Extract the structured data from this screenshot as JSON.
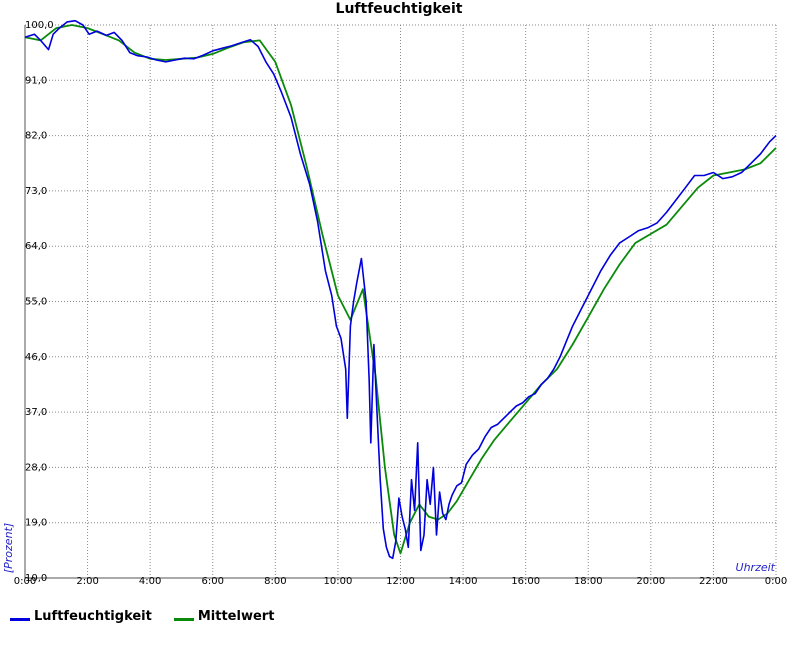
{
  "chart_data": {
    "type": "line",
    "title": "Luftfeuchtigkeit",
    "ylabel": "[Prozent]",
    "xlabel": "Uhrzeit",
    "ylim": [
      10,
      100
    ],
    "xlim": [
      0,
      24
    ],
    "y_ticks": [
      "10,0",
      "19,0",
      "28,0",
      "37,0",
      "46,0",
      "55,0",
      "64,0",
      "73,0",
      "82,0",
      "91,0",
      "100,0"
    ],
    "x_ticks": [
      "0:00",
      "2:00",
      "4:00",
      "6:00",
      "8:00",
      "10:00",
      "12:00",
      "14:00",
      "16:00",
      "18:00",
      "20:00",
      "22:00",
      "0:00"
    ],
    "grid": true,
    "legend_position": "bottom-left",
    "series": [
      {
        "name": "Luftfeuchtigkeit",
        "color": "#0000dd",
        "x": [
          0,
          0.3,
          0.5,
          0.75,
          0.9,
          1.1,
          1.35,
          1.6,
          1.85,
          2.05,
          2.3,
          2.6,
          2.85,
          3.1,
          3.35,
          3.6,
          3.9,
          4.2,
          4.5,
          4.8,
          5.1,
          5.4,
          5.7,
          6.0,
          6.3,
          6.6,
          6.9,
          7.2,
          7.45,
          7.7,
          7.95,
          8.2,
          8.5,
          8.8,
          9.1,
          9.35,
          9.6,
          9.8,
          9.95,
          10.1,
          10.25,
          10.3,
          10.4,
          10.5,
          10.6,
          10.75,
          10.9,
          11.0,
          11.05,
          11.15,
          11.25,
          11.35,
          11.45,
          11.55,
          11.65,
          11.75,
          11.85,
          11.95,
          12.05,
          12.15,
          12.25,
          12.35,
          12.45,
          12.55,
          12.65,
          12.75,
          12.85,
          12.95,
          13.05,
          13.15,
          13.25,
          13.35,
          13.45,
          13.55,
          13.65,
          13.8,
          13.95,
          14.1,
          14.3,
          14.5,
          14.7,
          14.9,
          15.1,
          15.3,
          15.5,
          15.7,
          15.9,
          16.1,
          16.3,
          16.5,
          16.7,
          16.9,
          17.1,
          17.3,
          17.5,
          17.8,
          18.1,
          18.4,
          18.7,
          19.0,
          19.3,
          19.6,
          19.9,
          20.2,
          20.5,
          20.8,
          21.1,
          21.4,
          21.7,
          22.0,
          22.3,
          22.6,
          22.9,
          23.2,
          23.5,
          23.8,
          24.0
        ],
        "values": [
          98,
          98.5,
          97.5,
          96,
          98.5,
          99.5,
          100.5,
          100.7,
          100,
          98.5,
          99,
          98.3,
          98.8,
          97.5,
          95.5,
          95,
          94.8,
          94.3,
          94,
          94.3,
          94.6,
          94.5,
          95.1,
          95.8,
          96.2,
          96.6,
          97.1,
          97.6,
          96.5,
          94,
          92,
          89,
          85,
          79,
          74,
          68,
          60,
          56,
          51,
          49,
          44,
          36,
          51,
          55,
          58,
          62,
          55,
          42,
          32,
          48,
          37,
          26,
          18,
          15,
          13.5,
          13.2,
          16,
          23,
          20,
          18,
          15,
          26,
          21,
          32,
          14.5,
          17,
          26,
          22,
          28,
          17,
          24,
          20.5,
          19.5,
          22,
          23.5,
          25,
          25.5,
          28.5,
          30,
          31,
          33,
          34.5,
          35,
          36,
          37,
          38,
          38.5,
          39.5,
          40,
          41.5,
          42.5,
          44,
          46,
          48.5,
          51,
          54,
          57,
          60,
          62.5,
          64.5,
          65.5,
          66.5,
          67,
          67.8,
          69.5,
          71.5,
          73.5,
          75.5,
          75.5,
          76,
          75,
          75.3,
          76,
          77.5,
          79,
          81,
          82
        ]
      },
      {
        "name": "Mittelwert",
        "color": "#0a8a0a",
        "x": [
          0,
          0.5,
          1.0,
          1.5,
          2.0,
          2.5,
          3.0,
          3.5,
          4.0,
          4.5,
          5.0,
          5.5,
          6.0,
          6.5,
          7.0,
          7.5,
          8.0,
          8.5,
          9.0,
          9.5,
          10.0,
          10.4,
          10.8,
          11.2,
          11.5,
          11.8,
          12.0,
          12.3,
          12.6,
          12.9,
          13.2,
          13.5,
          13.8,
          14.2,
          14.6,
          15.0,
          15.5,
          16.0,
          16.5,
          17.0,
          17.5,
          18.0,
          18.5,
          19.0,
          19.5,
          20.0,
          20.5,
          21.0,
          21.5,
          22.0,
          22.5,
          23.0,
          23.5,
          24.0
        ],
        "values": [
          98,
          97.5,
          99.5,
          100,
          99.5,
          98.5,
          97.5,
          95.5,
          94.5,
          94.3,
          94.5,
          94.7,
          95.3,
          96.3,
          97.2,
          97.5,
          94,
          87,
          77,
          66,
          56,
          52,
          57,
          43,
          28,
          17,
          14,
          19,
          22,
          20,
          19.5,
          20.5,
          22.5,
          26,
          29.5,
          32.5,
          35.5,
          38.5,
          41.5,
          44,
          48,
          52.5,
          57,
          61,
          64.5,
          66,
          67.5,
          70.5,
          73.5,
          75.5,
          76,
          76.5,
          77.5,
          80
        ]
      }
    ]
  }
}
